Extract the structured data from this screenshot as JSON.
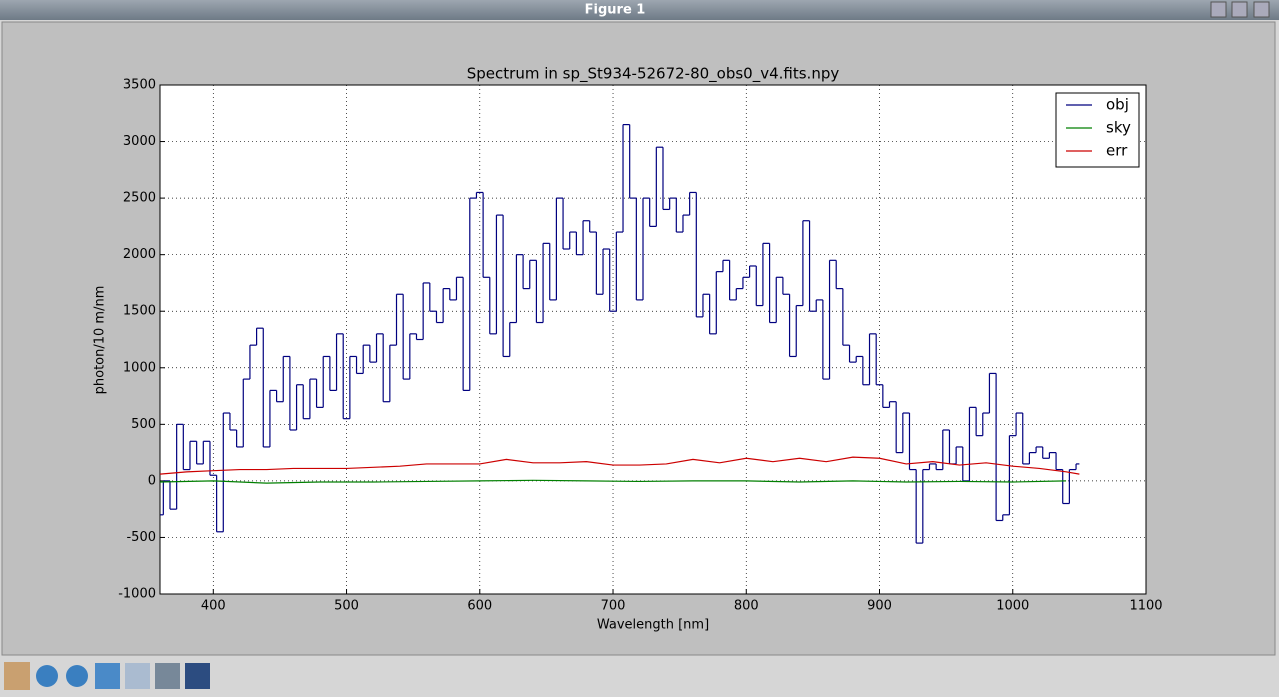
{
  "window_title": "Figure 1",
  "chart_data": {
    "type": "line",
    "title": "Spectrum in sp_St934-52672-80_obs0_v4.fits.npy",
    "xlabel": "Wavelength [nm]",
    "ylabel": "photon/10 m/nm",
    "xlim": [
      360,
      1100
    ],
    "ylim": [
      -1000,
      3500
    ],
    "xticks": [
      400,
      500,
      600,
      700,
      800,
      900,
      1000,
      1100
    ],
    "yticks": [
      -1000,
      -500,
      0,
      500,
      1000,
      1500,
      2000,
      2500,
      3000,
      3500
    ],
    "grid": true,
    "legend": "upper right",
    "series": [
      {
        "name": "obj",
        "color": "#00007f",
        "step": true,
        "x": [
          360,
          365,
          370,
          375,
          380,
          385,
          390,
          395,
          400,
          405,
          410,
          415,
          420,
          425,
          430,
          435,
          440,
          445,
          450,
          455,
          460,
          465,
          470,
          475,
          480,
          485,
          490,
          495,
          500,
          505,
          510,
          515,
          520,
          525,
          530,
          535,
          540,
          545,
          550,
          555,
          560,
          565,
          570,
          575,
          580,
          585,
          590,
          595,
          600,
          605,
          610,
          615,
          620,
          625,
          630,
          635,
          640,
          645,
          650,
          655,
          660,
          665,
          670,
          675,
          680,
          685,
          690,
          695,
          700,
          705,
          710,
          715,
          720,
          725,
          730,
          735,
          740,
          745,
          750,
          755,
          760,
          765,
          770,
          775,
          780,
          785,
          790,
          795,
          800,
          805,
          810,
          815,
          820,
          825,
          830,
          835,
          840,
          845,
          850,
          855,
          860,
          865,
          870,
          875,
          880,
          885,
          890,
          895,
          900,
          905,
          910,
          915,
          920,
          925,
          930,
          935,
          940,
          945,
          950,
          955,
          960,
          965,
          970,
          975,
          980,
          985,
          990,
          995,
          1000,
          1005,
          1010,
          1015,
          1020,
          1025,
          1030,
          1035,
          1040,
          1045,
          1050
        ],
        "values": [
          -300,
          0,
          -250,
          500,
          100,
          350,
          150,
          350,
          50,
          -450,
          600,
          450,
          300,
          900,
          1200,
          1350,
          300,
          800,
          700,
          1100,
          450,
          850,
          550,
          900,
          650,
          1100,
          800,
          1300,
          550,
          1100,
          950,
          1200,
          1050,
          1300,
          700,
          1200,
          1650,
          900,
          1300,
          1250,
          1750,
          1500,
          1400,
          1700,
          1600,
          1800,
          800,
          2500,
          2550,
          1800,
          1300,
          2350,
          1100,
          1400,
          2000,
          1700,
          1950,
          1400,
          2100,
          1600,
          2500,
          2050,
          2200,
          2000,
          2300,
          2200,
          1650,
          2050,
          1500,
          2200,
          3150,
          2500,
          1600,
          2500,
          2250,
          2950,
          2400,
          2500,
          2200,
          2350,
          2550,
          1450,
          1650,
          1300,
          1850,
          1950,
          1600,
          1700,
          1800,
          1900,
          1550,
          2100,
          1400,
          1800,
          1650,
          1100,
          1550,
          2300,
          1500,
          1600,
          900,
          1950,
          1700,
          1200,
          1050,
          1100,
          850,
          1300,
          850,
          650,
          700,
          250,
          600,
          100,
          -550,
          100,
          150,
          100,
          450,
          150,
          300,
          0,
          650,
          400,
          600,
          950,
          -350,
          -300,
          400,
          600,
          150,
          250,
          300,
          200,
          250,
          100,
          -200,
          100,
          150
        ]
      },
      {
        "name": "sky",
        "color": "#007f00",
        "x": [
          360,
          400,
          440,
          480,
          520,
          560,
          600,
          640,
          680,
          720,
          760,
          800,
          840,
          880,
          920,
          960,
          1000,
          1040
        ],
        "values": [
          -10,
          0,
          -20,
          -10,
          -10,
          -5,
          0,
          5,
          0,
          -5,
          0,
          0,
          -10,
          0,
          -10,
          -5,
          -10,
          0
        ]
      },
      {
        "name": "err",
        "color": "#cc0000",
        "x": [
          360,
          380,
          400,
          420,
          440,
          460,
          480,
          500,
          520,
          540,
          560,
          580,
          600,
          620,
          640,
          660,
          680,
          700,
          720,
          740,
          760,
          780,
          800,
          820,
          840,
          860,
          880,
          900,
          920,
          940,
          960,
          980,
          1000,
          1020,
          1040,
          1050
        ],
        "values": [
          60,
          80,
          90,
          100,
          100,
          110,
          110,
          110,
          120,
          130,
          150,
          150,
          150,
          190,
          160,
          160,
          170,
          140,
          140,
          150,
          190,
          160,
          200,
          170,
          200,
          170,
          210,
          200,
          150,
          170,
          140,
          160,
          130,
          110,
          80,
          60
        ]
      }
    ]
  }
}
